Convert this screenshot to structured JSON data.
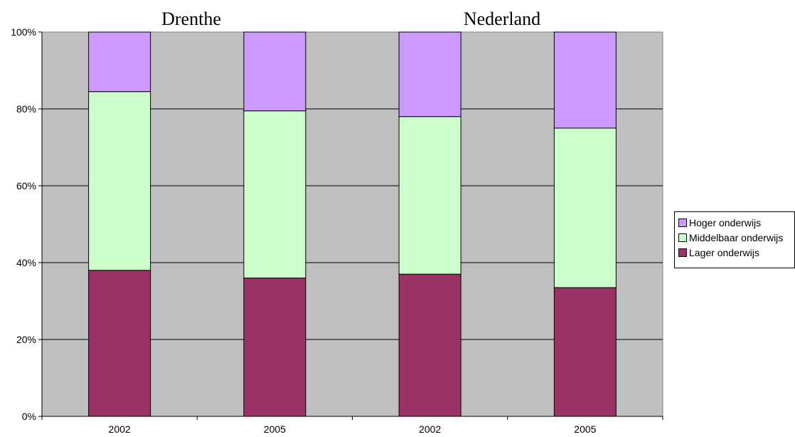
{
  "chart_data": {
    "type": "bar",
    "stacked": true,
    "percent_stacked": true,
    "group_titles": [
      "Drenthe",
      "Nederland"
    ],
    "categories": [
      "2002",
      "2005",
      "2002",
      "2005"
    ],
    "series": [
      {
        "name": "Lager onderwijs",
        "color": "#993366",
        "values": [
          38,
          36,
          37,
          33.5
        ]
      },
      {
        "name": "Middelbaar onderwijs",
        "color": "#CCFFCC",
        "values": [
          46.5,
          43.5,
          41,
          41.5
        ]
      },
      {
        "name": "Hoger onderwijs",
        "color": "#CC99FF",
        "values": [
          15.5,
          20.5,
          22,
          25
        ]
      }
    ],
    "y_ticks": [
      "0%",
      "20%",
      "40%",
      "60%",
      "80%",
      "100%"
    ],
    "ylim": [
      0,
      100
    ],
    "plot_background": "#C0C0C0",
    "gridlines": true,
    "legend_position": "right"
  }
}
